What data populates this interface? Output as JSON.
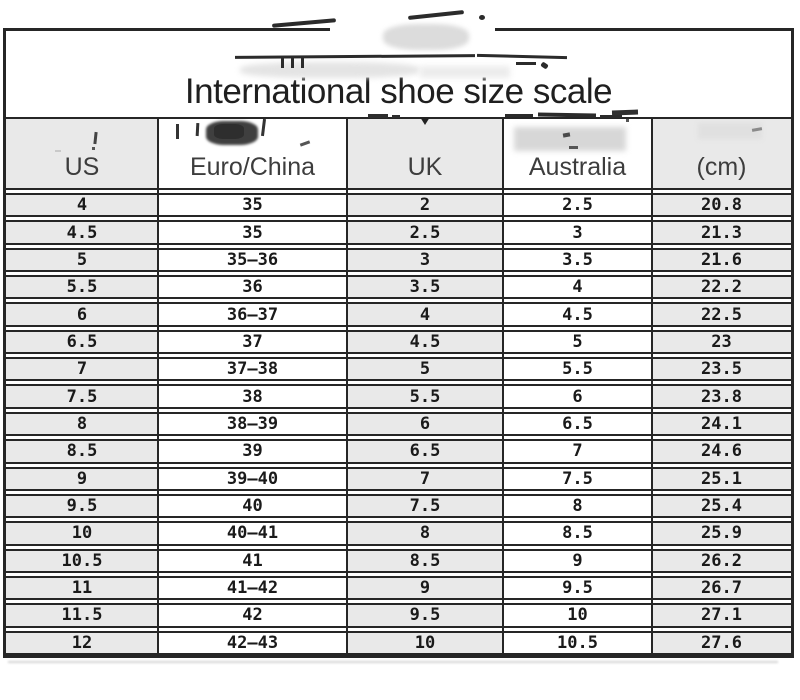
{
  "chart_data": {
    "type": "table",
    "title": "International shoe size scale",
    "columns": [
      "US",
      "Euro/China",
      "UK",
      "Australia",
      "(cm)"
    ],
    "rows": [
      [
        "4",
        "35",
        "2",
        "2.5",
        "20.8"
      ],
      [
        "4.5",
        "35",
        "2.5",
        "3",
        "21.3"
      ],
      [
        "5",
        "35—36",
        "3",
        "3.5",
        "21.6"
      ],
      [
        "5.5",
        "36",
        "3.5",
        "4",
        "22.2"
      ],
      [
        "6",
        "36—37",
        "4",
        "4.5",
        "22.5"
      ],
      [
        "6.5",
        "37",
        "4.5",
        "5",
        "23"
      ],
      [
        "7",
        "37—38",
        "5",
        "5.5",
        "23.5"
      ],
      [
        "7.5",
        "38",
        "5.5",
        "6",
        "23.8"
      ],
      [
        "8",
        "38—39",
        "6",
        "6.5",
        "24.1"
      ],
      [
        "8.5",
        "39",
        "6.5",
        "7",
        "24.6"
      ],
      [
        "9",
        "39—40",
        "7",
        "7.5",
        "25.1"
      ],
      [
        "9.5",
        "40",
        "7.5",
        "8",
        "25.4"
      ],
      [
        "10",
        "40—41",
        "8",
        "8.5",
        "25.9"
      ],
      [
        "10.5",
        "41",
        "8.5",
        "9",
        "26.2"
      ],
      [
        "11",
        "41—42",
        "9",
        "9.5",
        "26.7"
      ],
      [
        "11.5",
        "42",
        "9.5",
        "10",
        "27.1"
      ],
      [
        "12",
        "42—43",
        "10",
        "10.5",
        "27.6"
      ]
    ],
    "layout": {
      "grid": true,
      "striped_columns": true
    }
  },
  "colors": {
    "border": "#262626",
    "cell_gray": "#e9e9e9",
    "cell_white": "#ffffff",
    "title_text": "#1f1f1f",
    "header_text": "#3d3d3d",
    "cell_text": "#1a1a1a"
  }
}
